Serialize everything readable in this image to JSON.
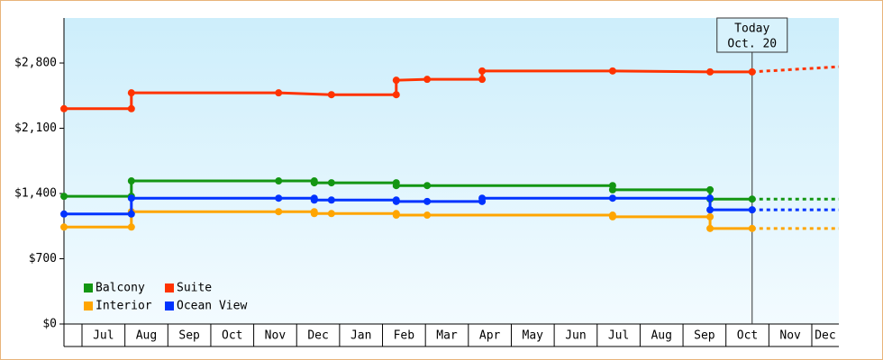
{
  "chart_data": {
    "type": "line",
    "ylim": [
      0,
      3283
    ],
    "yticks": [
      {
        "value": 0,
        "label": "$0"
      },
      {
        "value": 700,
        "label": "$700"
      },
      {
        "value": 1400,
        "label": "$1,400"
      },
      {
        "value": 2100,
        "label": "$2,100"
      },
      {
        "value": 2800,
        "label": "$2,800"
      }
    ],
    "xlim": [
      -0.42,
      17.63
    ],
    "xticks": [
      {
        "value": 0,
        "label": "Jul"
      },
      {
        "value": 1,
        "label": "Aug"
      },
      {
        "value": 2,
        "label": "Sep"
      },
      {
        "value": 3,
        "label": "Oct"
      },
      {
        "value": 4,
        "label": "Nov"
      },
      {
        "value": 5,
        "label": "Dec"
      },
      {
        "value": 6,
        "label": "Jan"
      },
      {
        "value": 7,
        "label": "Feb"
      },
      {
        "value": 8,
        "label": "Mar"
      },
      {
        "value": 9,
        "label": "Apr"
      },
      {
        "value": 10,
        "label": "May"
      },
      {
        "value": 11,
        "label": "Jun"
      },
      {
        "value": 12,
        "label": "Jul"
      },
      {
        "value": 13,
        "label": "Aug"
      },
      {
        "value": 14,
        "label": "Sep"
      },
      {
        "value": 15,
        "label": "Oct"
      },
      {
        "value": 16,
        "label": "Nov"
      },
      {
        "value": 17,
        "label": "Dec"
      }
    ],
    "today": {
      "x": 15.61,
      "label": "Today",
      "date": "Oct. 20"
    },
    "series": [
      {
        "name": "Balcony",
        "color": "#139613",
        "x": [
          -0.42,
          1.15,
          1.15,
          4.58,
          5.41,
          5.41,
          5.81,
          7.32,
          7.32,
          8.04,
          12.36,
          12.36,
          14.63,
          14.63,
          15.61,
          17.63
        ],
        "values": [
          1370,
          1370,
          1535,
          1535,
          1535,
          1515,
          1515,
          1515,
          1485,
          1485,
          1485,
          1440,
          1440,
          1340,
          1340,
          1340
        ]
      },
      {
        "name": "Suite",
        "color": "#ff3300",
        "x": [
          -0.42,
          1.15,
          1.15,
          4.58,
          5.81,
          7.32,
          7.32,
          8.04,
          9.32,
          9.32,
          12.36,
          14.63,
          15.61,
          17.63
        ],
        "values": [
          2310,
          2310,
          2480,
          2480,
          2460,
          2460,
          2615,
          2625,
          2625,
          2715,
          2715,
          2705,
          2705,
          2760
        ]
      },
      {
        "name": "Interior",
        "color": "#ffa500",
        "x": [
          -0.42,
          1.15,
          1.15,
          4.58,
          5.41,
          5.41,
          5.81,
          7.32,
          7.32,
          8.04,
          12.36,
          12.36,
          14.63,
          14.63,
          15.61,
          17.63
        ],
        "values": [
          1040,
          1040,
          1205,
          1205,
          1205,
          1185,
          1185,
          1185,
          1168,
          1168,
          1168,
          1150,
          1150,
          1025,
          1025,
          1025
        ]
      },
      {
        "name": "Ocean View",
        "color": "#0033ff",
        "x": [
          -0.42,
          1.15,
          1.15,
          4.58,
          5.41,
          5.41,
          5.81,
          7.32,
          7.32,
          8.04,
          9.32,
          9.32,
          12.36,
          14.63,
          14.63,
          15.61,
          17.63
        ],
        "values": [
          1180,
          1180,
          1350,
          1350,
          1350,
          1330,
          1330,
          1330,
          1315,
          1315,
          1315,
          1350,
          1350,
          1350,
          1225,
          1225,
          1225
        ]
      }
    ]
  }
}
